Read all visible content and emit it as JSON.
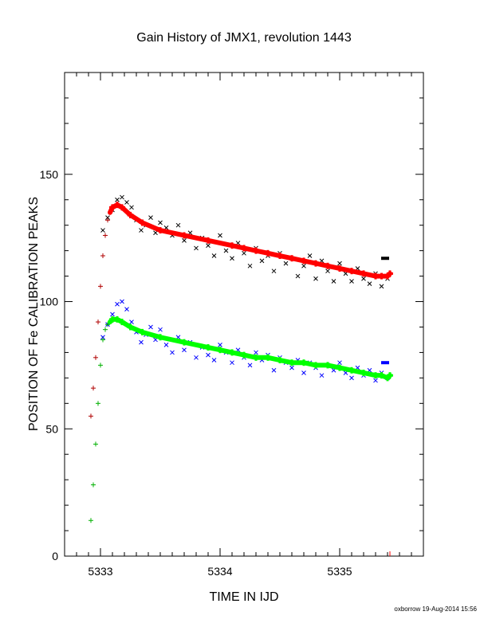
{
  "credit": "oxborrow 19-Aug-2014 15:56",
  "chart_data": {
    "type": "scatter",
    "title": "Gain History of JMX1, revolution 1443",
    "xlabel": "TIME IN IJD",
    "ylabel": "POSITION OF Fe CALIBRATION PEAKS",
    "xlim": [
      5332.7,
      5335.7
    ],
    "ylim": [
      0,
      190
    ],
    "xticks": [
      5333,
      5334,
      5335
    ],
    "yticks": [
      0,
      50,
      100,
      150
    ],
    "grid": false,
    "colors": {
      "upper_scatter": "#000000",
      "upper_fit": "#ff0000",
      "upper_rise": "#b00000",
      "lower_scatter": "#0000ff",
      "lower_fit": "#00ff00",
      "lower_rise": "#00b000",
      "end_marker": "#ff0000"
    },
    "series": [
      {
        "marker": "x",
        "color": "#000000",
        "x": [
          5333.02,
          5333.06,
          5333.1,
          5333.14,
          5333.18,
          5333.22,
          5333.26,
          5333.3,
          5333.34,
          5333.38,
          5333.42,
          5333.46,
          5333.5,
          5333.55,
          5333.6,
          5333.65,
          5333.7,
          5333.75,
          5333.8,
          5333.85,
          5333.9,
          5333.95,
          5334.0,
          5334.05,
          5334.1,
          5334.15,
          5334.2,
          5334.25,
          5334.3,
          5334.35,
          5334.4,
          5334.45,
          5334.5,
          5334.55,
          5334.6,
          5334.65,
          5334.7,
          5334.75,
          5334.8,
          5334.85,
          5334.9,
          5334.95,
          5335.0,
          5335.05,
          5335.1,
          5335.15,
          5335.2,
          5335.25,
          5335.3,
          5335.35,
          5335.4
        ],
        "y": [
          128,
          133,
          136,
          140,
          141,
          139,
          137,
          132,
          128,
          130,
          133,
          127,
          131,
          129,
          126,
          130,
          124,
          127,
          121,
          125,
          122,
          118,
          126,
          120,
          117,
          123,
          119,
          114,
          121,
          116,
          118,
          112,
          119,
          115,
          117,
          110,
          114,
          118,
          109,
          116,
          112,
          108,
          115,
          111,
          108,
          113,
          109,
          107,
          111,
          106,
          109
        ]
      },
      {
        "name": "",
        "marker": "+",
        "color": "#ff0000",
        "x": [
          5332.92,
          5332.94,
          5332.96,
          5332.98,
          5333.0,
          5333.02,
          5333.04,
          5333.06,
          5333.08,
          5333.1,
          5333.14,
          5333.18,
          5333.25,
          5333.35,
          5333.5,
          5333.7,
          5333.9,
          5334.1,
          5334.2,
          5334.3,
          5334.4,
          5334.5,
          5334.6,
          5334.7,
          5334.8,
          5334.9,
          5335.0,
          5335.1,
          5335.2,
          5335.3,
          5335.35,
          5335.4,
          5335.42
        ],
        "y": [
          55,
          66,
          78,
          92,
          106,
          118,
          126,
          132,
          135,
          137,
          138,
          137,
          134,
          131,
          128,
          126,
          124,
          122,
          121,
          120,
          119,
          118,
          117,
          116,
          115,
          114,
          113,
          112,
          111,
          110,
          110,
          110,
          111
        ]
      },
      {
        "marker": "x",
        "color": "#0000ff",
        "x": [
          5333.02,
          5333.06,
          5333.1,
          5333.14,
          5333.18,
          5333.22,
          5333.26,
          5333.3,
          5333.34,
          5333.38,
          5333.42,
          5333.46,
          5333.5,
          5333.55,
          5333.6,
          5333.65,
          5333.7,
          5333.75,
          5333.8,
          5333.85,
          5333.9,
          5333.95,
          5334.0,
          5334.05,
          5334.1,
          5334.15,
          5334.2,
          5334.25,
          5334.3,
          5334.35,
          5334.4,
          5334.45,
          5334.5,
          5334.55,
          5334.6,
          5334.65,
          5334.7,
          5334.75,
          5334.8,
          5334.85,
          5334.9,
          5334.95,
          5335.0,
          5335.05,
          5335.1,
          5335.15,
          5335.2,
          5335.25,
          5335.3,
          5335.35,
          5335.4
        ],
        "y": [
          86,
          91,
          95,
          99,
          100,
          97,
          92,
          88,
          84,
          87,
          90,
          85,
          89,
          83,
          80,
          86,
          81,
          84,
          78,
          82,
          79,
          77,
          83,
          80,
          76,
          81,
          78,
          75,
          80,
          77,
          79,
          73,
          78,
          76,
          74,
          77,
          72,
          76,
          74,
          71,
          75,
          73,
          76,
          72,
          70,
          74,
          71,
          73,
          69,
          72,
          70
        ]
      },
      {
        "marker": "+",
        "color": "#00ff00",
        "x": [
          5332.92,
          5332.94,
          5332.96,
          5332.98,
          5333.0,
          5333.02,
          5333.04,
          5333.06,
          5333.08,
          5333.1,
          5333.14,
          5333.18,
          5333.25,
          5333.35,
          5333.5,
          5333.7,
          5333.9,
          5334.0,
          5334.1,
          5334.2,
          5334.3,
          5334.4,
          5334.5,
          5334.6,
          5334.7,
          5334.8,
          5334.9,
          5335.0,
          5335.1,
          5335.2,
          5335.3,
          5335.35,
          5335.4,
          5335.42
        ],
        "y": [
          14,
          28,
          44,
          60,
          75,
          85,
          89,
          91,
          92,
          93,
          93,
          92,
          90,
          88,
          86,
          84,
          82,
          81,
          80,
          79,
          78,
          78,
          77,
          76,
          76,
          75,
          75,
          74,
          73,
          72,
          71,
          71,
          70,
          71
        ]
      }
    ],
    "end_markers": [
      {
        "x": 5335.38,
        "y": 117,
        "color": "#000000"
      },
      {
        "x": 5335.38,
        "y": 76,
        "color": "#0000ff"
      }
    ]
  }
}
